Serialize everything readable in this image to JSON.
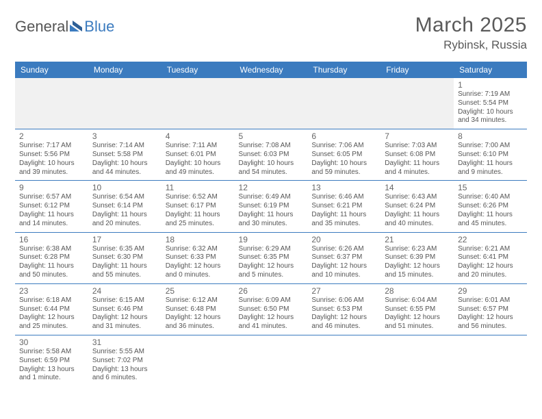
{
  "logo": {
    "text1": "General",
    "text2": "Blue"
  },
  "title": "March 2025",
  "location": "Rybinsk, Russia",
  "accent_color": "#3b7bbf",
  "weekdays": [
    "Sunday",
    "Monday",
    "Tuesday",
    "Wednesday",
    "Thursday",
    "Friday",
    "Saturday"
  ],
  "weeks": [
    [
      null,
      null,
      null,
      null,
      null,
      null,
      {
        "n": "1",
        "sr": "7:19 AM",
        "ss": "5:54 PM",
        "dl": "10 hours and 34 minutes."
      }
    ],
    [
      {
        "n": "2",
        "sr": "7:17 AM",
        "ss": "5:56 PM",
        "dl": "10 hours and 39 minutes."
      },
      {
        "n": "3",
        "sr": "7:14 AM",
        "ss": "5:58 PM",
        "dl": "10 hours and 44 minutes."
      },
      {
        "n": "4",
        "sr": "7:11 AM",
        "ss": "6:01 PM",
        "dl": "10 hours and 49 minutes."
      },
      {
        "n": "5",
        "sr": "7:08 AM",
        "ss": "6:03 PM",
        "dl": "10 hours and 54 minutes."
      },
      {
        "n": "6",
        "sr": "7:06 AM",
        "ss": "6:05 PM",
        "dl": "10 hours and 59 minutes."
      },
      {
        "n": "7",
        "sr": "7:03 AM",
        "ss": "6:08 PM",
        "dl": "11 hours and 4 minutes."
      },
      {
        "n": "8",
        "sr": "7:00 AM",
        "ss": "6:10 PM",
        "dl": "11 hours and 9 minutes."
      }
    ],
    [
      {
        "n": "9",
        "sr": "6:57 AM",
        "ss": "6:12 PM",
        "dl": "11 hours and 14 minutes."
      },
      {
        "n": "10",
        "sr": "6:54 AM",
        "ss": "6:14 PM",
        "dl": "11 hours and 20 minutes."
      },
      {
        "n": "11",
        "sr": "6:52 AM",
        "ss": "6:17 PM",
        "dl": "11 hours and 25 minutes."
      },
      {
        "n": "12",
        "sr": "6:49 AM",
        "ss": "6:19 PM",
        "dl": "11 hours and 30 minutes."
      },
      {
        "n": "13",
        "sr": "6:46 AM",
        "ss": "6:21 PM",
        "dl": "11 hours and 35 minutes."
      },
      {
        "n": "14",
        "sr": "6:43 AM",
        "ss": "6:24 PM",
        "dl": "11 hours and 40 minutes."
      },
      {
        "n": "15",
        "sr": "6:40 AM",
        "ss": "6:26 PM",
        "dl": "11 hours and 45 minutes."
      }
    ],
    [
      {
        "n": "16",
        "sr": "6:38 AM",
        "ss": "6:28 PM",
        "dl": "11 hours and 50 minutes."
      },
      {
        "n": "17",
        "sr": "6:35 AM",
        "ss": "6:30 PM",
        "dl": "11 hours and 55 minutes."
      },
      {
        "n": "18",
        "sr": "6:32 AM",
        "ss": "6:33 PM",
        "dl": "12 hours and 0 minutes."
      },
      {
        "n": "19",
        "sr": "6:29 AM",
        "ss": "6:35 PM",
        "dl": "12 hours and 5 minutes."
      },
      {
        "n": "20",
        "sr": "6:26 AM",
        "ss": "6:37 PM",
        "dl": "12 hours and 10 minutes."
      },
      {
        "n": "21",
        "sr": "6:23 AM",
        "ss": "6:39 PM",
        "dl": "12 hours and 15 minutes."
      },
      {
        "n": "22",
        "sr": "6:21 AM",
        "ss": "6:41 PM",
        "dl": "12 hours and 20 minutes."
      }
    ],
    [
      {
        "n": "23",
        "sr": "6:18 AM",
        "ss": "6:44 PM",
        "dl": "12 hours and 25 minutes."
      },
      {
        "n": "24",
        "sr": "6:15 AM",
        "ss": "6:46 PM",
        "dl": "12 hours and 31 minutes."
      },
      {
        "n": "25",
        "sr": "6:12 AM",
        "ss": "6:48 PM",
        "dl": "12 hours and 36 minutes."
      },
      {
        "n": "26",
        "sr": "6:09 AM",
        "ss": "6:50 PM",
        "dl": "12 hours and 41 minutes."
      },
      {
        "n": "27",
        "sr": "6:06 AM",
        "ss": "6:53 PM",
        "dl": "12 hours and 46 minutes."
      },
      {
        "n": "28",
        "sr": "6:04 AM",
        "ss": "6:55 PM",
        "dl": "12 hours and 51 minutes."
      },
      {
        "n": "29",
        "sr": "6:01 AM",
        "ss": "6:57 PM",
        "dl": "12 hours and 56 minutes."
      }
    ],
    [
      {
        "n": "30",
        "sr": "5:58 AM",
        "ss": "6:59 PM",
        "dl": "13 hours and 1 minute."
      },
      {
        "n": "31",
        "sr": "5:55 AM",
        "ss": "7:02 PM",
        "dl": "13 hours and 6 minutes."
      },
      null,
      null,
      null,
      null,
      null
    ]
  ],
  "labels": {
    "sunrise": "Sunrise:",
    "sunset": "Sunset:",
    "daylight": "Daylight:"
  }
}
